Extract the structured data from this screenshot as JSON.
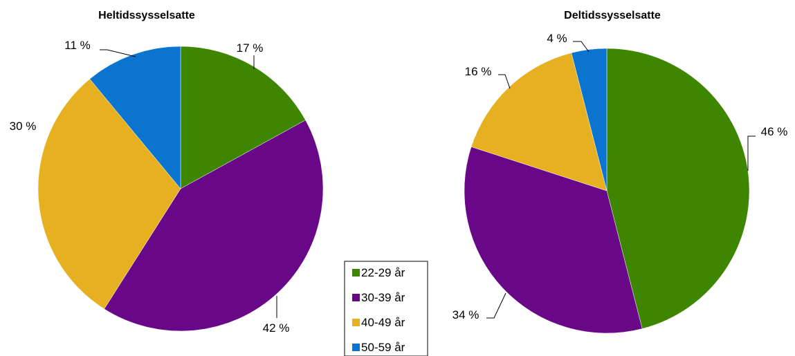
{
  "colors": {
    "c1": "#3e8600",
    "c2": "#690789",
    "c3": "#e6b021",
    "c4": "#0b74cf"
  },
  "legend": {
    "items": [
      {
        "label": "22-29 år",
        "color": "#3e8600"
      },
      {
        "label": "30-39 år",
        "color": "#690789"
      },
      {
        "label": "40-49 år",
        "color": "#e6b021"
      },
      {
        "label": "50-59 år",
        "color": "#0b74cf"
      }
    ]
  },
  "chart_data": [
    {
      "type": "pie",
      "title": "Heltidssysselsatte",
      "categories": [
        "22-29 år",
        "30-39 år",
        "40-49 år",
        "50-59 år"
      ],
      "values": [
        17,
        42,
        30,
        11
      ],
      "labels": [
        "17 %",
        "42 %",
        "30 %",
        "11 %"
      ]
    },
    {
      "type": "pie",
      "title": "Deltidssysselsatte",
      "categories": [
        "22-29 år",
        "30-39 år",
        "40-49 år",
        "50-59 år"
      ],
      "values": [
        46,
        34,
        16,
        4
      ],
      "labels": [
        "46 %",
        "34 %",
        "16 %",
        "4 %"
      ]
    }
  ]
}
